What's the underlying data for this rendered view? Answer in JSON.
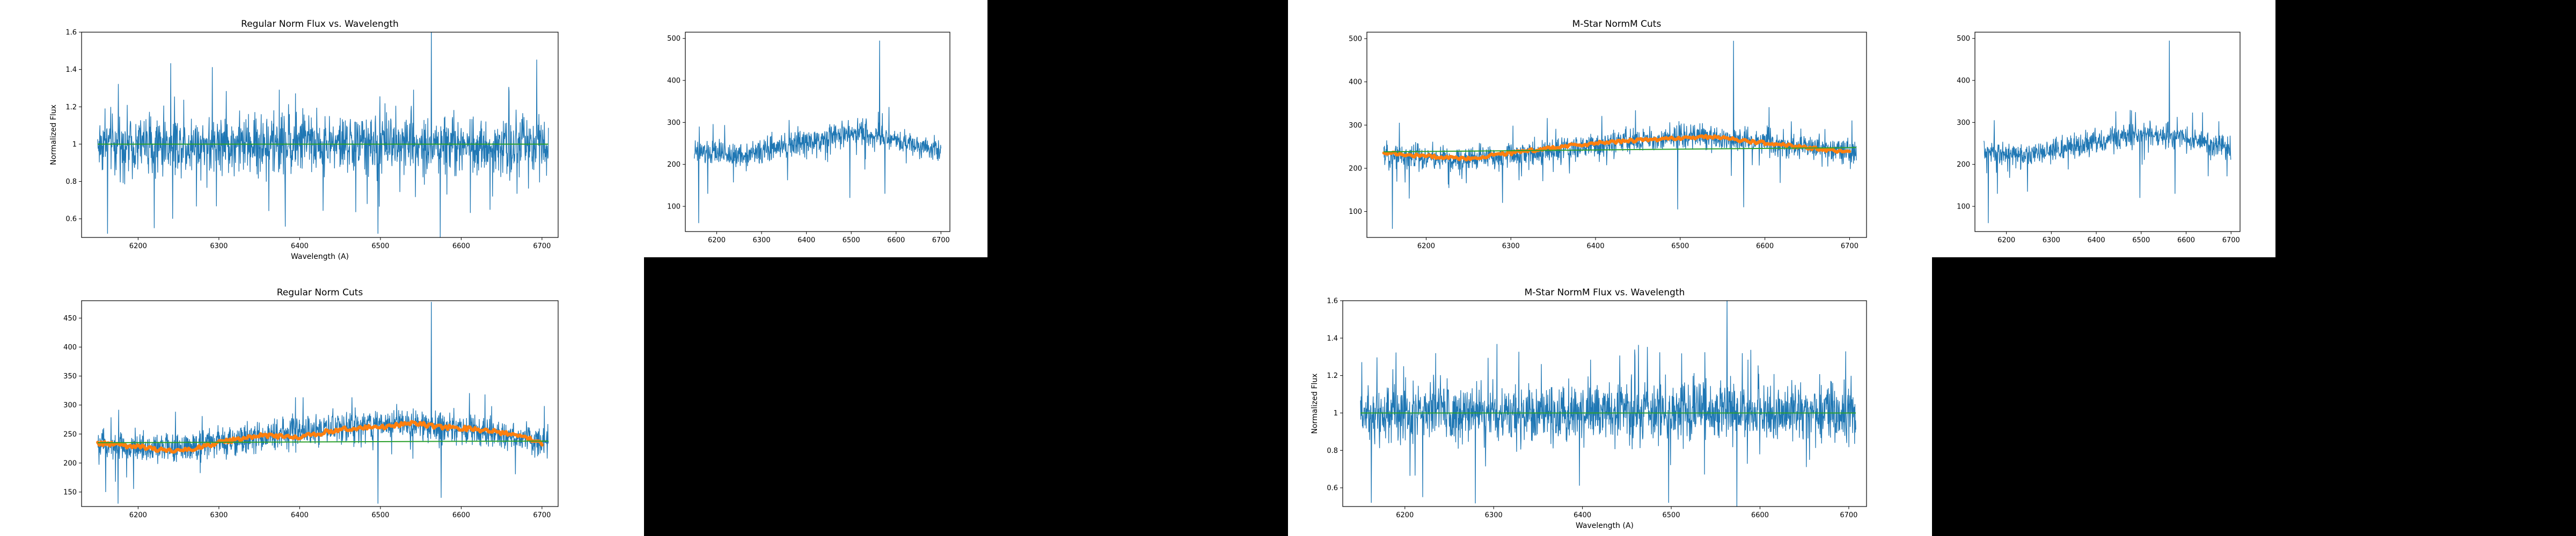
{
  "colors": {
    "flux": "#1f77b4",
    "cut": "#ff7f0e",
    "fit": "#2ca02c",
    "axis": "#000000"
  },
  "chart_data": [
    {
      "id": "regular-norm-flux",
      "type": "line",
      "title": "Regular Norm Flux vs. Wavelength",
      "xlabel": "Wavelength (A)",
      "ylabel": "Normalized Flux",
      "xlim": [
        6130,
        6720
      ],
      "ylim": [
        0.5,
        1.6
      ],
      "xticks": [
        6200,
        6300,
        6400,
        6500,
        6600,
        6700
      ],
      "yticks": [
        0.6,
        0.8,
        1.0,
        1.2,
        1.4,
        1.6
      ],
      "series": [
        {
          "kind": "flux",
          "x_start": 6150,
          "x_end": 6708,
          "baseline": [
            [
              6150,
              1.0
            ],
            [
              6708,
              1.0
            ]
          ],
          "noise": 0.11,
          "lines": [
            [
              6563,
              1.62
            ]
          ],
          "dips": [
            [
              6162,
              0.52
            ],
            [
              6220,
              0.55
            ],
            [
              6497,
              0.52
            ],
            [
              6574,
              0.5
            ]
          ]
        },
        {
          "kind": "fit",
          "points": [
            [
              6150,
              1.0
            ],
            [
              6708,
              1.0
            ]
          ]
        }
      ]
    },
    {
      "id": "upper-spectrum-1",
      "type": "line",
      "title": "",
      "xlabel": "",
      "ylabel": "",
      "xlim": [
        6130,
        6720
      ],
      "ylim": [
        40,
        515
      ],
      "xticks": [
        6200,
        6300,
        6400,
        6500,
        6600,
        6700
      ],
      "yticks": [
        100,
        200,
        300,
        400,
        500
      ],
      "series": [
        {
          "kind": "flux",
          "x_start": 6150,
          "x_end": 6700,
          "baseline": [
            [
              6150,
              230
            ],
            [
              6250,
              220
            ],
            [
              6350,
              240
            ],
            [
              6450,
              265
            ],
            [
              6520,
              275
            ],
            [
              6600,
              260
            ],
            [
              6700,
              235
            ]
          ],
          "noise": 20,
          "lines": [
            [
              6563,
              495
            ]
          ],
          "dips": [
            [
              6160,
              60
            ],
            [
              6180,
              130
            ],
            [
              6497,
              120
            ],
            [
              6575,
              130
            ]
          ]
        }
      ]
    },
    {
      "id": "mstar-normm-cuts",
      "type": "line",
      "title": "M-Star NormM Cuts",
      "xlabel": "",
      "ylabel": "",
      "xlim": [
        6130,
        6720
      ],
      "ylim": [
        40,
        515
      ],
      "xticks": [
        6200,
        6300,
        6400,
        6500,
        6600,
        6700
      ],
      "yticks": [
        100,
        200,
        300,
        400,
        500
      ],
      "series": [
        {
          "kind": "flux",
          "x_start": 6150,
          "x_end": 6708,
          "baseline": [
            [
              6150,
              230
            ],
            [
              6250,
              220
            ],
            [
              6350,
              240
            ],
            [
              6450,
              265
            ],
            [
              6520,
              275
            ],
            [
              6600,
              260
            ],
            [
              6708,
              235
            ]
          ],
          "noise": 20,
          "lines": [
            [
              6563,
              495
            ]
          ],
          "dips": [
            [
              6160,
              60
            ],
            [
              6180,
              130
            ],
            [
              6290,
              120
            ],
            [
              6497,
              105
            ],
            [
              6575,
              110
            ]
          ]
        },
        {
          "kind": "cut",
          "points": [
            [
              6150,
              235
            ],
            [
              6200,
              228
            ],
            [
              6250,
              222
            ],
            [
              6300,
              235
            ],
            [
              6350,
              248
            ],
            [
              6400,
              258
            ],
            [
              6450,
              265
            ],
            [
              6500,
              270
            ],
            [
              6540,
              273
            ],
            [
              6580,
              262
            ],
            [
              6620,
              255
            ],
            [
              6660,
              245
            ],
            [
              6700,
              238
            ]
          ]
        },
        {
          "kind": "fit",
          "points": [
            [
              6150,
              238
            ],
            [
              6708,
              248
            ]
          ]
        }
      ]
    },
    {
      "id": "upper-spectrum-2",
      "type": "line",
      "title": "",
      "xlabel": "",
      "ylabel": "",
      "xlim": [
        6130,
        6720
      ],
      "ylim": [
        40,
        515
      ],
      "xticks": [
        6200,
        6300,
        6400,
        6500,
        6600,
        6700
      ],
      "yticks": [
        100,
        200,
        300,
        400,
        500
      ],
      "series": [
        {
          "kind": "flux",
          "x_start": 6150,
          "x_end": 6700,
          "baseline": [
            [
              6150,
              230
            ],
            [
              6250,
              220
            ],
            [
              6350,
              240
            ],
            [
              6450,
              265
            ],
            [
              6520,
              275
            ],
            [
              6600,
              260
            ],
            [
              6700,
              235
            ]
          ],
          "noise": 20,
          "lines": [
            [
              6563,
              495
            ]
          ],
          "dips": [
            [
              6160,
              60
            ],
            [
              6180,
              130
            ],
            [
              6497,
              120
            ],
            [
              6575,
              130
            ]
          ]
        }
      ]
    },
    {
      "id": "regular-norm-cuts",
      "type": "line",
      "title": "Regular Norm Cuts",
      "xlabel": "",
      "ylabel": "",
      "xlim": [
        6130,
        6720
      ],
      "ylim": [
        125,
        480
      ],
      "xticks": [
        6200,
        6300,
        6400,
        6500,
        6600,
        6700
      ],
      "yticks": [
        150,
        200,
        250,
        300,
        350,
        400,
        450
      ],
      "series": [
        {
          "kind": "flux",
          "x_start": 6150,
          "x_end": 6708,
          "baseline": [
            [
              6150,
              232
            ],
            [
              6250,
              225
            ],
            [
              6350,
              245
            ],
            [
              6450,
              262
            ],
            [
              6520,
              270
            ],
            [
              6600,
              258
            ],
            [
              6708,
              238
            ]
          ],
          "noise": 18,
          "lines": [
            [
              6563,
              478
            ]
          ],
          "dips": [
            [
              6160,
              150
            ],
            [
              6175,
              130
            ],
            [
              6497,
              130
            ],
            [
              6575,
              140
            ]
          ]
        },
        {
          "kind": "cut",
          "points": [
            [
              6150,
              235
            ],
            [
              6200,
              228
            ],
            [
              6250,
              220
            ],
            [
              6300,
              235
            ],
            [
              6350,
              248
            ],
            [
              6400,
              245
            ],
            [
              6450,
              258
            ],
            [
              6500,
              262
            ],
            [
              6540,
              268
            ],
            [
              6580,
              262
            ],
            [
              6620,
              258
            ],
            [
              6660,
              250
            ],
            [
              6700,
              235
            ]
          ]
        },
        {
          "kind": "fit",
          "points": [
            [
              6150,
              235
            ],
            [
              6708,
              238
            ]
          ]
        }
      ]
    },
    {
      "id": "mstar-normm-flux",
      "type": "line",
      "title": "M-Star NormM Flux vs. Wavelength",
      "xlabel": "Wavelength (A)",
      "ylabel": "Normalized Flux",
      "xlim": [
        6130,
        6720
      ],
      "ylim": [
        0.5,
        1.6
      ],
      "xticks": [
        6200,
        6300,
        6400,
        6500,
        6600,
        6700
      ],
      "yticks": [
        0.6,
        0.8,
        1.0,
        1.2,
        1.4,
        1.6
      ],
      "series": [
        {
          "kind": "flux",
          "x_start": 6150,
          "x_end": 6708,
          "baseline": [
            [
              6150,
              1.0
            ],
            [
              6708,
              1.0
            ]
          ],
          "noise": 0.11,
          "lines": [
            [
              6563,
              1.62
            ]
          ],
          "dips": [
            [
              6162,
              0.52
            ],
            [
              6220,
              0.55
            ],
            [
              6497,
              0.52
            ],
            [
              6574,
              0.5
            ]
          ]
        },
        {
          "kind": "fit",
          "points": [
            [
              6150,
              1.0
            ],
            [
              6708,
              1.0
            ]
          ]
        }
      ]
    }
  ]
}
